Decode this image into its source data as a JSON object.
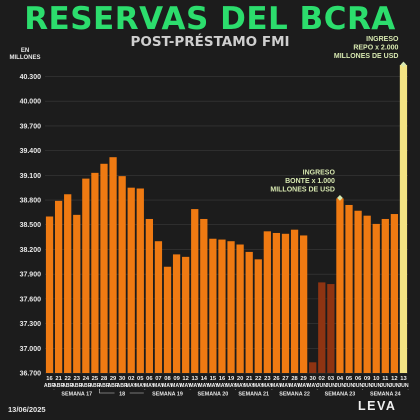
{
  "title": "RESERVAS DEL BCRA",
  "subtitle": "POST-PRÉSTAMO FMI",
  "unit_label": "EN\nMILLONES",
  "date": "13/06/2025",
  "logo": "LEVA",
  "colors": {
    "bar": "#ef7a12",
    "bar_dark": "#8e3412",
    "bar_highlight": "#f3e383",
    "title": "#2cdd6d",
    "grid": "#3a3a3a",
    "annotation": "#d7e8b0"
  },
  "chart_data": {
    "type": "bar",
    "ylim": [
      36700,
      40500
    ],
    "yticks": [
      36700,
      37000,
      37300,
      37600,
      37900,
      38200,
      38500,
      38800,
      39100,
      39400,
      39700,
      40000,
      40300
    ],
    "ytick_labels": [
      "36.700",
      "37.000",
      "37.300",
      "37.600",
      "37.900",
      "38.200",
      "38.500",
      "38.800",
      "39.100",
      "39.400",
      "39.700",
      "40.000",
      "40.300"
    ],
    "grid": true,
    "bars": [
      {
        "day": "16",
        "month": "ABR",
        "value": 38600
      },
      {
        "day": "21",
        "month": "ABR",
        "value": 38790
      },
      {
        "day": "22",
        "month": "ABR",
        "value": 38870
      },
      {
        "day": "23",
        "month": "ABR",
        "value": 38620
      },
      {
        "day": "24",
        "month": "ABR",
        "value": 39060
      },
      {
        "day": "25",
        "month": "ABR",
        "value": 39130
      },
      {
        "day": "28",
        "month": "ABR",
        "value": 39240
      },
      {
        "day": "29",
        "month": "ABR",
        "value": 39320
      },
      {
        "day": "30",
        "month": "ABR",
        "value": 39090
      },
      {
        "day": "02",
        "month": "MAY",
        "value": 38950
      },
      {
        "day": "05",
        "month": "MAY",
        "value": 38940
      },
      {
        "day": "06",
        "month": "MAY",
        "value": 38570
      },
      {
        "day": "07",
        "month": "MAY",
        "value": 38300
      },
      {
        "day": "08",
        "month": "MAY",
        "value": 37990
      },
      {
        "day": "09",
        "month": "MAY",
        "value": 38140
      },
      {
        "day": "12",
        "month": "MAY",
        "value": 38110
      },
      {
        "day": "13",
        "month": "MAY",
        "value": 38690
      },
      {
        "day": "14",
        "month": "MAY",
        "value": 38570
      },
      {
        "day": "15",
        "month": "MAY",
        "value": 38330
      },
      {
        "day": "16",
        "month": "MAY",
        "value": 38320
      },
      {
        "day": "19",
        "month": "MAY",
        "value": 38300
      },
      {
        "day": "20",
        "month": "MAY",
        "value": 38260
      },
      {
        "day": "21",
        "month": "MAY",
        "value": 38170
      },
      {
        "day": "22",
        "month": "MAY",
        "value": 38080
      },
      {
        "day": "23",
        "month": "MAY",
        "value": 38420
      },
      {
        "day": "26",
        "month": "MAY",
        "value": 38400
      },
      {
        "day": "27",
        "month": "MAY",
        "value": 38390
      },
      {
        "day": "28",
        "month": "MAY",
        "value": 38440
      },
      {
        "day": "29",
        "month": "MAY",
        "value": 38370
      },
      {
        "day": "30",
        "month": "MAY",
        "value": 36830,
        "shade": "dark"
      },
      {
        "day": "02",
        "month": "JUN",
        "value": 37800,
        "shade": "dark"
      },
      {
        "day": "03",
        "month": "JUN",
        "value": 37780,
        "shade": "dark"
      },
      {
        "day": "04",
        "month": "JUN",
        "value": 38820
      },
      {
        "day": "05",
        "month": "JUN",
        "value": 38740
      },
      {
        "day": "06",
        "month": "JUN",
        "value": 38670
      },
      {
        "day": "09",
        "month": "JUN",
        "value": 38610
      },
      {
        "day": "10",
        "month": "JUN",
        "value": 38510
      },
      {
        "day": "11",
        "month": "JUN",
        "value": 38570
      },
      {
        "day": "12",
        "month": "JUN",
        "value": 38630
      },
      {
        "day": "13",
        "month": "JUN",
        "value": 40440,
        "shade": "highlight"
      }
    ],
    "weeks": [
      {
        "label": "SEMANA 17",
        "from": 1,
        "to": 5
      },
      {
        "label": "18",
        "from": 6,
        "to": 10
      },
      {
        "label": "SEMANA 19",
        "from": 11,
        "to": 15
      },
      {
        "label": "SEMANA 20",
        "from": 16,
        "to": 20
      },
      {
        "label": "SEMANA 21",
        "from": 21,
        "to": 24
      },
      {
        "label": "SEMANA 22",
        "from": 25,
        "to": 29
      },
      {
        "label": "SEMANA 23",
        "from": 30,
        "to": 34
      },
      {
        "label": "SEMANA 24",
        "from": 35,
        "to": 39
      }
    ],
    "annotations": [
      {
        "lines": [
          "INGRESO",
          "BONTE x 1.000",
          "MILLONES DE USD"
        ],
        "bar": 32
      },
      {
        "lines": [
          "INGRESO",
          "REPO x 2.000",
          "MILLONES DE USD"
        ],
        "bar": 39
      }
    ]
  }
}
